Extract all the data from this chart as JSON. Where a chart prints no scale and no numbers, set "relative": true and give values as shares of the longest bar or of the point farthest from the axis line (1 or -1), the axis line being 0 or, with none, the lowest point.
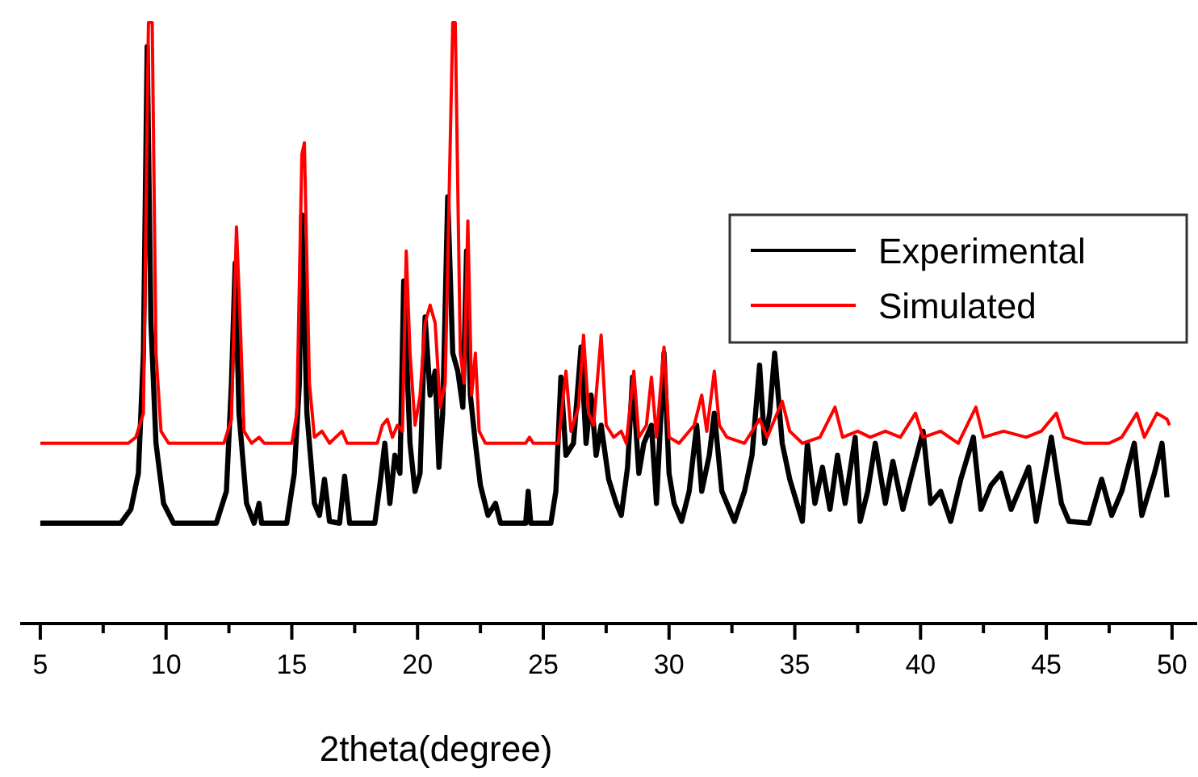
{
  "chart_data": {
    "type": "line",
    "relative": true,
    "xlabel": "2theta(degree)",
    "xlim": [
      4.2,
      51
    ],
    "xticks": [
      5,
      {
        "value": 7.5,
        "label": null
      },
      10,
      {
        "value": 12.5,
        "label": null
      },
      15,
      {
        "value": 17.5,
        "label": null
      },
      20,
      {
        "value": 22.5,
        "label": null
      },
      25,
      {
        "value": 27.5,
        "label": null
      },
      30,
      {
        "value": 32.5,
        "label": null
      },
      35,
      {
        "value": 37.5,
        "label": null
      },
      40,
      {
        "value": 42.5,
        "label": null
      },
      45,
      {
        "value": 47.5,
        "label": null
      },
      50
    ],
    "legend": "right",
    "marker": "none",
    "line_style": "solid",
    "series": [
      {
        "name": "Experimental",
        "color": "#000000",
        "x": [
          5,
          8.2,
          8.6,
          8.9,
          9.1,
          9.25,
          9.4,
          9.6,
          9.9,
          10.3,
          12.0,
          12.4,
          12.6,
          12.75,
          12.9,
          13.2,
          13.5,
          13.7,
          13.8,
          14.8,
          15.1,
          15.3,
          15.4,
          15.6,
          15.9,
          16.1,
          16.3,
          16.5,
          16.9,
          17.1,
          17.3,
          18.3,
          18.5,
          18.7,
          18.9,
          19.1,
          19.3,
          19.45,
          19.7,
          19.9,
          20.1,
          20.3,
          20.5,
          20.7,
          20.85,
          21.0,
          21.2,
          21.4,
          21.6,
          21.8,
          21.95,
          22.1,
          22.3,
          22.5,
          22.8,
          23.1,
          23.3,
          24.3,
          24.4,
          24.5,
          25.3,
          25.5,
          25.7,
          25.9,
          26.2,
          26.5,
          26.7,
          26.9,
          27.1,
          27.3,
          27.6,
          27.9,
          28.1,
          28.35,
          28.55,
          28.8,
          29.0,
          29.3,
          29.5,
          29.8,
          30.0,
          30.2,
          30.5,
          30.8,
          31.1,
          31.3,
          31.6,
          31.8,
          32.1,
          32.6,
          33.0,
          33.3,
          33.6,
          33.8,
          34.0,
          34.2,
          34.5,
          34.8,
          35.3,
          35.5,
          35.8,
          36.1,
          36.4,
          36.7,
          37.0,
          37.4,
          37.6,
          37.9,
          38.2,
          38.6,
          38.9,
          39.3,
          39.6,
          40.1,
          40.4,
          40.8,
          41.2,
          41.6,
          42.1,
          42.4,
          42.8,
          43.2,
          43.6,
          44.0,
          44.3,
          44.6,
          45.2,
          45.6,
          45.9,
          46.7,
          47.2,
          47.6,
          48.0,
          48.5,
          48.8,
          49.3,
          49.6,
          49.8
        ],
        "values": [
          0.167,
          0.167,
          0.19,
          0.25,
          0.45,
          0.96,
          0.5,
          0.3,
          0.2,
          0.167,
          0.167,
          0.22,
          0.4,
          0.6,
          0.35,
          0.2,
          0.167,
          0.2,
          0.167,
          0.167,
          0.25,
          0.4,
          0.68,
          0.35,
          0.2,
          0.18,
          0.24,
          0.17,
          0.167,
          0.245,
          0.167,
          0.167,
          0.23,
          0.3,
          0.2,
          0.28,
          0.25,
          0.57,
          0.3,
          0.22,
          0.25,
          0.51,
          0.38,
          0.42,
          0.26,
          0.35,
          0.71,
          0.45,
          0.42,
          0.36,
          0.62,
          0.38,
          0.3,
          0.23,
          0.18,
          0.2,
          0.167,
          0.167,
          0.22,
          0.167,
          0.167,
          0.22,
          0.41,
          0.28,
          0.3,
          0.46,
          0.3,
          0.38,
          0.28,
          0.33,
          0.24,
          0.2,
          0.18,
          0.26,
          0.41,
          0.25,
          0.3,
          0.33,
          0.2,
          0.45,
          0.25,
          0.2,
          0.17,
          0.22,
          0.33,
          0.22,
          0.28,
          0.35,
          0.22,
          0.17,
          0.22,
          0.28,
          0.43,
          0.3,
          0.35,
          0.45,
          0.3,
          0.24,
          0.17,
          0.3,
          0.2,
          0.26,
          0.19,
          0.28,
          0.2,
          0.31,
          0.17,
          0.22,
          0.3,
          0.2,
          0.27,
          0.19,
          0.24,
          0.32,
          0.2,
          0.22,
          0.17,
          0.24,
          0.31,
          0.19,
          0.23,
          0.25,
          0.19,
          0.23,
          0.26,
          0.17,
          0.31,
          0.2,
          0.17,
          0.167,
          0.24,
          0.18,
          0.22,
          0.3,
          0.18,
          0.25,
          0.3,
          0.21
        ]
      },
      {
        "name": "Simulated",
        "color": "#ff0000",
        "x": [
          5,
          8.5,
          8.8,
          9.1,
          9.3,
          9.45,
          9.6,
          9.8,
          10.1,
          12.3,
          12.6,
          12.8,
          12.95,
          13.1,
          13.4,
          13.7,
          13.9,
          15.0,
          15.2,
          15.4,
          15.5,
          15.7,
          15.9,
          16.2,
          16.5,
          17.0,
          17.2,
          18.4,
          18.6,
          18.8,
          19.0,
          19.2,
          19.4,
          19.55,
          19.7,
          19.9,
          20.1,
          20.3,
          20.5,
          20.7,
          20.9,
          21.1,
          21.3,
          21.4,
          21.5,
          21.7,
          21.85,
          22.0,
          22.15,
          22.3,
          22.45,
          22.7,
          24.3,
          24.45,
          24.6,
          25.6,
          25.9,
          26.1,
          26.4,
          26.6,
          26.8,
          27.0,
          27.3,
          27.5,
          27.8,
          28.1,
          28.3,
          28.6,
          28.8,
          29.1,
          29.3,
          29.5,
          29.8,
          30.0,
          30.4,
          31.0,
          31.3,
          31.5,
          31.8,
          32.0,
          32.3,
          33.0,
          33.6,
          33.9,
          34.5,
          34.8,
          35.3,
          36.0,
          36.6,
          36.9,
          37.5,
          38.0,
          38.6,
          39.2,
          39.8,
          40.1,
          40.8,
          41.5,
          42.2,
          42.5,
          43.3,
          44.2,
          44.8,
          45.4,
          45.7,
          46.5,
          47.5,
          48.0,
          48.6,
          48.9,
          49.4,
          49.8,
          49.9
        ],
        "values": [
          0.3,
          0.3,
          0.31,
          0.35,
          1,
          1,
          0.45,
          0.32,
          0.3,
          0.3,
          0.34,
          0.66,
          0.5,
          0.32,
          0.3,
          0.31,
          0.3,
          0.3,
          0.35,
          0.78,
          0.8,
          0.4,
          0.31,
          0.32,
          0.3,
          0.32,
          0.3,
          0.3,
          0.33,
          0.34,
          0.31,
          0.33,
          0.32,
          0.62,
          0.45,
          0.33,
          0.38,
          0.5,
          0.53,
          0.5,
          0.36,
          0.4,
          0.8,
          1,
          1,
          0.45,
          0.4,
          0.67,
          0.38,
          0.45,
          0.32,
          0.3,
          0.3,
          0.31,
          0.3,
          0.3,
          0.42,
          0.32,
          0.36,
          0.48,
          0.35,
          0.33,
          0.48,
          0.33,
          0.31,
          0.32,
          0.3,
          0.42,
          0.31,
          0.33,
          0.41,
          0.31,
          0.46,
          0.31,
          0.3,
          0.33,
          0.38,
          0.32,
          0.42,
          0.33,
          0.31,
          0.3,
          0.34,
          0.31,
          0.37,
          0.32,
          0.3,
          0.31,
          0.36,
          0.31,
          0.32,
          0.31,
          0.32,
          0.31,
          0.35,
          0.31,
          0.32,
          0.3,
          0.36,
          0.31,
          0.32,
          0.31,
          0.32,
          0.35,
          0.31,
          0.3,
          0.3,
          0.31,
          0.35,
          0.31,
          0.35,
          0.34,
          0.33
        ]
      }
    ]
  }
}
